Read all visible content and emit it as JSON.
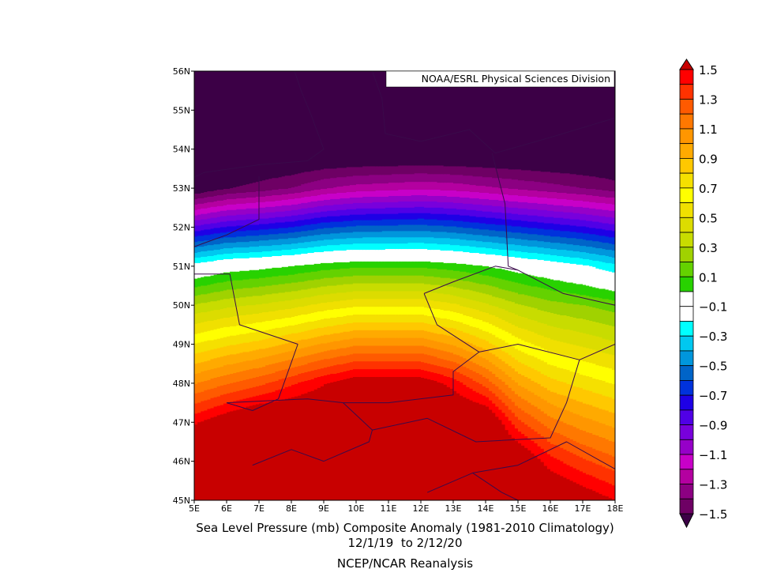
{
  "chart_data": {
    "type": "heatmap",
    "subtype": "filled-contour-map",
    "title": "Sea Level Pressure (mb) Composite Anomaly (1981-2010 Climatology)",
    "subtitle": "12/1/19  to 2/12/20",
    "source": "NCEP/NCAR Reanalysis",
    "credit": "NOAA/ESRL Physical Sciences Division",
    "xlim": [
      5,
      18
    ],
    "ylim": [
      45,
      56
    ],
    "x_tick_labels": [
      "5E",
      "6E",
      "7E",
      "8E",
      "9E",
      "10E",
      "11E",
      "12E",
      "13E",
      "14E",
      "15E",
      "16E",
      "17E",
      "18E"
    ],
    "y_tick_labels": [
      "45N",
      "46N",
      "47N",
      "48N",
      "49N",
      "50N",
      "51N",
      "52N",
      "53N",
      "54N",
      "55N",
      "56N"
    ],
    "grid": false,
    "legend": "right colorbar",
    "grid_data": {
      "lon": [
        5,
        6,
        7,
        8,
        9,
        10,
        11,
        12,
        13,
        14,
        15,
        16,
        17,
        18
      ],
      "lat": [
        56,
        55,
        54,
        53,
        52,
        51,
        50,
        49,
        48,
        47,
        46,
        45
      ],
      "values": [
        [
          -1.7,
          -1.7,
          -1.7,
          -1.7,
          -1.7,
          -1.7,
          -1.7,
          -1.7,
          -1.7,
          -1.7,
          -1.7,
          -1.7,
          -1.7,
          -1.7
        ],
        [
          -1.7,
          -1.7,
          -1.7,
          -1.7,
          -1.7,
          -1.7,
          -1.7,
          -1.7,
          -1.7,
          -1.7,
          -1.7,
          -1.7,
          -1.7,
          -1.7
        ],
        [
          -1.7,
          -1.7,
          -1.7,
          -1.7,
          -1.7,
          -1.7,
          -1.7,
          -1.7,
          -1.7,
          -1.7,
          -1.7,
          -1.7,
          -1.7,
          -1.7
        ],
        [
          -1.61,
          -1.51,
          -1.46,
          -1.4,
          -1.31,
          -1.26,
          -1.24,
          -1.22,
          -1.24,
          -1.28,
          -1.32,
          -1.36,
          -1.4,
          -1.45
        ],
        [
          -0.88,
          -0.79,
          -0.75,
          -0.7,
          -0.62,
          -0.58,
          -0.57,
          -0.56,
          -0.59,
          -0.64,
          -0.69,
          -0.74,
          -0.79,
          -0.86
        ],
        [
          -0.15,
          -0.07,
          -0.04,
          0.0,
          0.05,
          0.08,
          0.08,
          0.08,
          0.05,
          0.0,
          -0.06,
          -0.12,
          -0.18,
          -0.27
        ],
        [
          0.31,
          0.37,
          0.41,
          0.46,
          0.53,
          0.58,
          0.58,
          0.58,
          0.52,
          0.42,
          0.31,
          0.24,
          0.2,
          0.15
        ],
        [
          0.7,
          0.78,
          0.84,
          0.92,
          1.01,
          1.08,
          1.08,
          1.08,
          0.99,
          0.84,
          0.65,
          0.54,
          0.48,
          0.42
        ],
        [
          1.09,
          1.19,
          1.27,
          1.38,
          1.49,
          1.58,
          1.58,
          1.58,
          1.46,
          1.26,
          0.99,
          0.84,
          0.76,
          0.69
        ],
        [
          1.48,
          1.6,
          1.7,
          1.7,
          1.7,
          1.7,
          1.7,
          1.7,
          1.7,
          1.68,
          1.33,
          1.14,
          1.04,
          0.96
        ],
        [
          1.7,
          1.7,
          1.7,
          1.7,
          1.7,
          1.7,
          1.7,
          1.7,
          1.7,
          1.7,
          1.67,
          1.44,
          1.32,
          1.23
        ],
        [
          1.7,
          1.7,
          1.7,
          1.7,
          1.7,
          1.7,
          1.7,
          1.7,
          1.7,
          1.7,
          1.7,
          1.7,
          1.6,
          1.5
        ]
      ]
    },
    "colorbar": {
      "min": -1.5,
      "max": 1.5,
      "step": 0.1,
      "labels": [
        "1.5",
        "1.3",
        "1.1",
        "0.9",
        "0.7",
        "0.5",
        "0.3",
        "0.1",
        "-0.1",
        "-0.3",
        "-0.5",
        "-0.7",
        "-0.9",
        "-1.1",
        "-1.3",
        "-1.5"
      ],
      "over_color": "#c80000",
      "under_color": "#3c0046",
      "colors_high_to_low": [
        "#ff0000",
        "#ff3200",
        "#ff5a00",
        "#ff7800",
        "#ff9600",
        "#ffaa00",
        "#ffc800",
        "#f5e000",
        "#ffff00",
        "#f0e000",
        "#dcdc00",
        "#c8dc00",
        "#a0d200",
        "#64d200",
        "#28d200",
        "#ffffff",
        "#ffffff",
        "#00ffff",
        "#00c8f0",
        "#0096dc",
        "#0064c8",
        "#0032dc",
        "#1e00e6",
        "#5000e6",
        "#7800dc",
        "#9600c8",
        "#c800c8",
        "#b400a0",
        "#8c0082",
        "#6e0064",
        "#500050"
      ]
    }
  }
}
